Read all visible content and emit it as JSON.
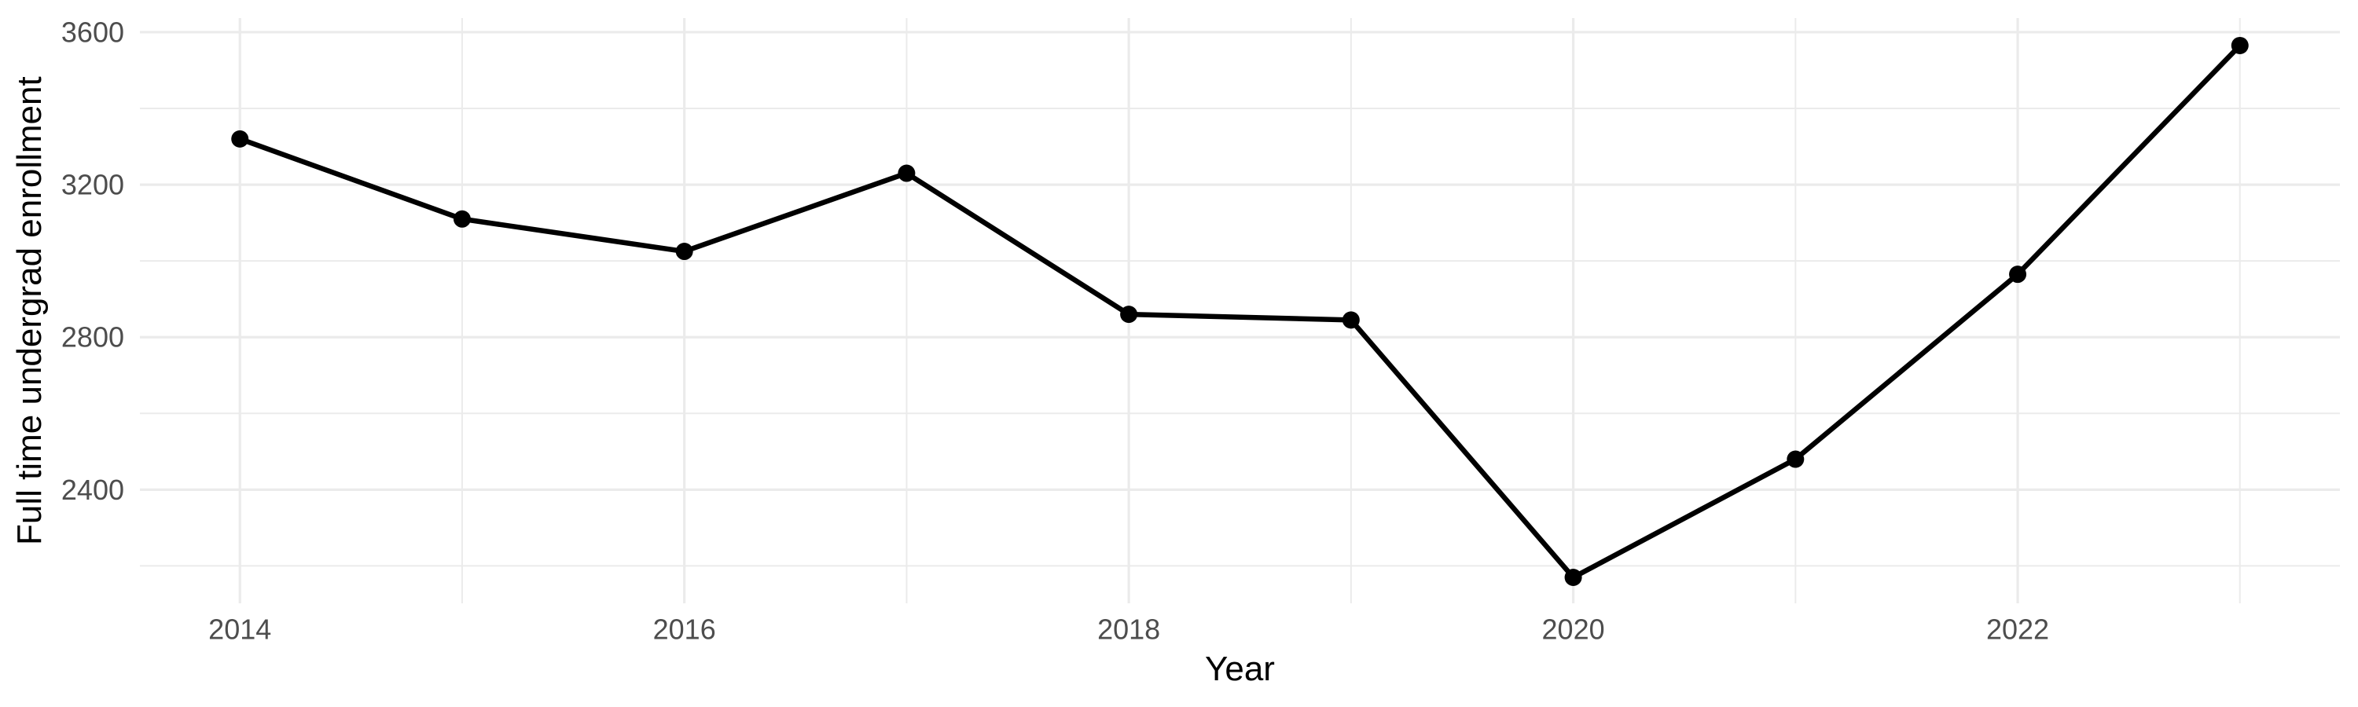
{
  "chart_data": {
    "type": "line",
    "title": "",
    "xlabel": "Year",
    "ylabel": "Full time undergrad enrollment",
    "x": [
      2014,
      2015,
      2016,
      2017,
      2018,
      2019,
      2020,
      2021,
      2022,
      2023
    ],
    "series": [
      {
        "name": "Full time undergrad enrollment",
        "values": [
          3320,
          3110,
          3025,
          3230,
          2860,
          2845,
          2170,
          2480,
          2965,
          3565
        ]
      }
    ],
    "x_ticks": [
      2014,
      2016,
      2018,
      2020,
      2022
    ],
    "x_minor_ticks": [
      2015,
      2017,
      2019,
      2021,
      2023
    ],
    "y_ticks": [
      2400,
      2800,
      3200,
      3600
    ],
    "y_minor_ticks": [
      2200,
      2600,
      3000,
      3400
    ],
    "xlim": [
      2013.55,
      2023.45
    ],
    "ylim": [
      2102,
      3637
    ],
    "grid": "major+minor",
    "legend_position": "none",
    "marker": "filled-circle",
    "colors": {
      "line": "#000000",
      "point": "#000000",
      "grid_major": "#EBEBEB",
      "grid_minor": "#EBEBEB",
      "tick_label": "#4D4D4D",
      "axis_title": "#000000",
      "background": "#FFFFFF"
    }
  }
}
